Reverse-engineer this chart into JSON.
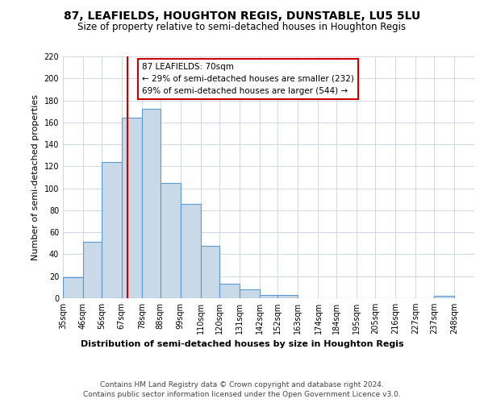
{
  "title": "87, LEAFIELDS, HOUGHTON REGIS, DUNSTABLE, LU5 5LU",
  "subtitle": "Size of property relative to semi-detached houses in Houghton Regis",
  "xlabel": "Distribution of semi-detached houses by size in Houghton Regis",
  "ylabel": "Number of semi-detached properties",
  "bin_labels": [
    "35sqm",
    "46sqm",
    "56sqm",
    "67sqm",
    "78sqm",
    "88sqm",
    "99sqm",
    "110sqm",
    "120sqm",
    "131sqm",
    "142sqm",
    "152sqm",
    "163sqm",
    "174sqm",
    "184sqm",
    "195sqm",
    "205sqm",
    "216sqm",
    "227sqm",
    "237sqm",
    "248sqm"
  ],
  "bin_edges": [
    35,
    46,
    56,
    67,
    78,
    88,
    99,
    110,
    120,
    131,
    142,
    152,
    163,
    174,
    184,
    195,
    205,
    216,
    227,
    237,
    248
  ],
  "bar_values": [
    19,
    51,
    124,
    164,
    172,
    105,
    86,
    48,
    13,
    8,
    3,
    3,
    0,
    0,
    0,
    0,
    0,
    0,
    0,
    2
  ],
  "bar_color": "#c9d9e8",
  "bar_edge_color": "#5b9bd5",
  "property_line_x": 70,
  "annotation_title": "87 LEAFIELDS: 70sqm",
  "annotation_line1": "← 29% of semi-detached houses are smaller (232)",
  "annotation_line2": "69% of semi-detached houses are larger (544) →",
  "annotation_box_color": "#ffffff",
  "annotation_box_edge_color": "#cc0000",
  "vline_color": "#cc0000",
  "ylim": [
    0,
    220
  ],
  "yticks": [
    0,
    20,
    40,
    60,
    80,
    100,
    120,
    140,
    160,
    180,
    200,
    220
  ],
  "footer_line1": "Contains HM Land Registry data © Crown copyright and database right 2024.",
  "footer_line2": "Contains public sector information licensed under the Open Government Licence v3.0.",
  "bg_color": "#ffffff",
  "grid_color": "#d0d8e8",
  "title_fontsize": 10,
  "subtitle_fontsize": 8.5,
  "axis_label_fontsize": 8,
  "tick_fontsize": 7,
  "annotation_fontsize": 7.5,
  "footer_fontsize": 6.5
}
